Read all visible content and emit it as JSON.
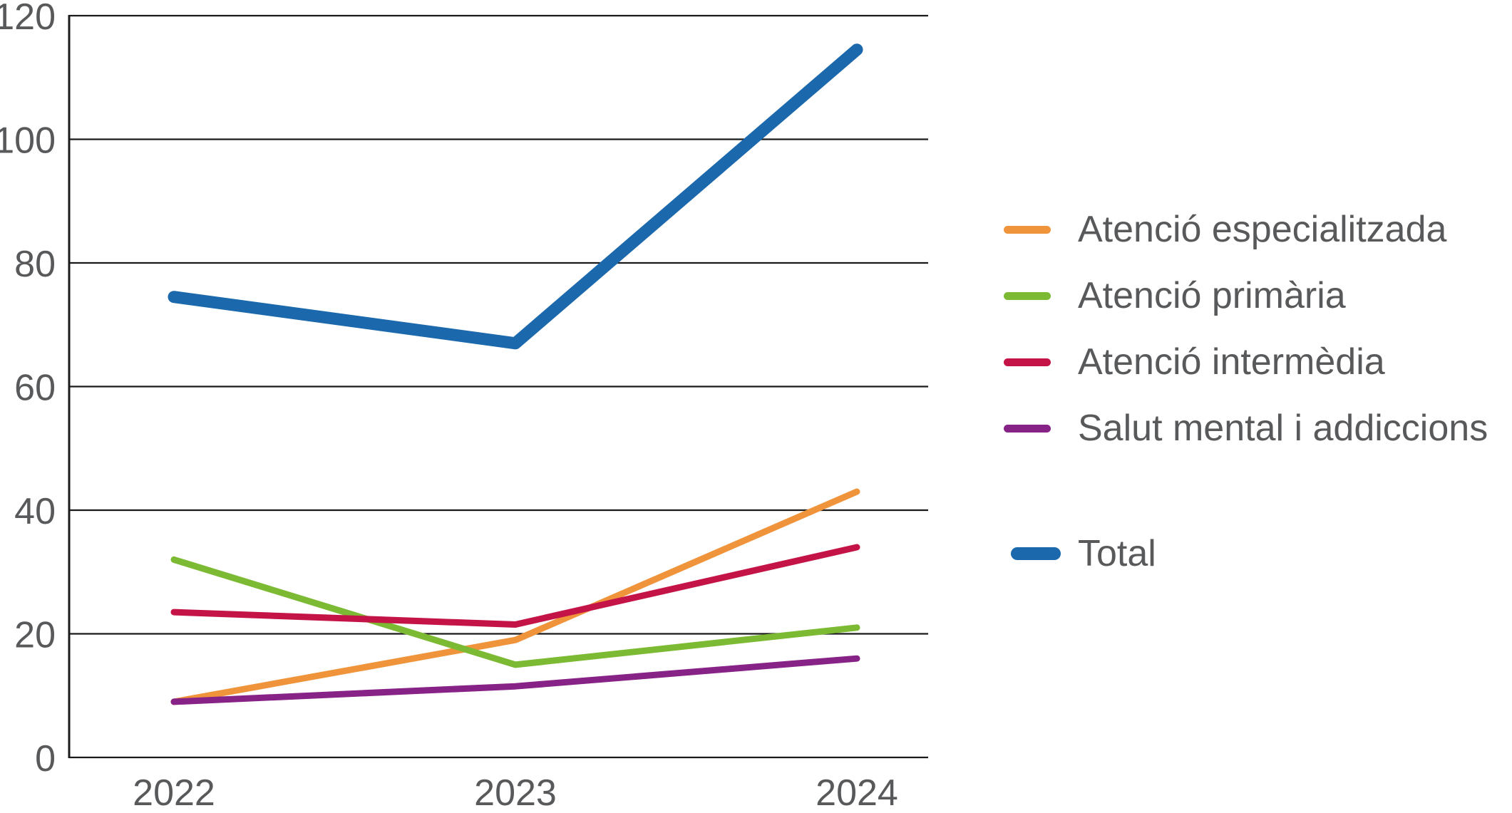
{
  "colors": {
    "text": "#58595B",
    "grid": "#1A1A1A",
    "background": "#FFFFFF"
  },
  "chart_data": {
    "type": "line",
    "title": "",
    "xlabel": "",
    "ylabel": "",
    "categories": [
      "2022",
      "2023",
      "2024"
    ],
    "x_labels": [
      "2022",
      "2023",
      "2024"
    ],
    "yticks": [
      0,
      20,
      40,
      60,
      80,
      100,
      120
    ],
    "ytick_labels": [
      "0",
      "20",
      "40",
      "60",
      "80",
      "100",
      "120"
    ],
    "ylim": [
      0,
      120
    ],
    "grid": "horizontal",
    "legend_position": "right",
    "series": [
      {
        "id": "atencio-especialitzada",
        "name": "Atenció especialitzada",
        "color": "#F0943C",
        "values": [
          9,
          19,
          43
        ],
        "thick": false
      },
      {
        "id": "atencio-primaria",
        "name": "Atenció primària",
        "color": "#7CBA33",
        "values": [
          32,
          15,
          21
        ],
        "thick": false
      },
      {
        "id": "atencio-intermedia",
        "name": "Atenció intermèdia",
        "color": "#C41346",
        "values": [
          23.5,
          21.5,
          34
        ],
        "thick": false
      },
      {
        "id": "salut-mental-i-addiccions",
        "name": "Salut mental i addiccions",
        "color": "#872387",
        "values": [
          9,
          11.5,
          16
        ],
        "thick": false
      },
      {
        "id": "total",
        "name": "Total",
        "color": "#1B69AC",
        "values": [
          74.5,
          67,
          114.5
        ],
        "thick": true
      }
    ]
  }
}
